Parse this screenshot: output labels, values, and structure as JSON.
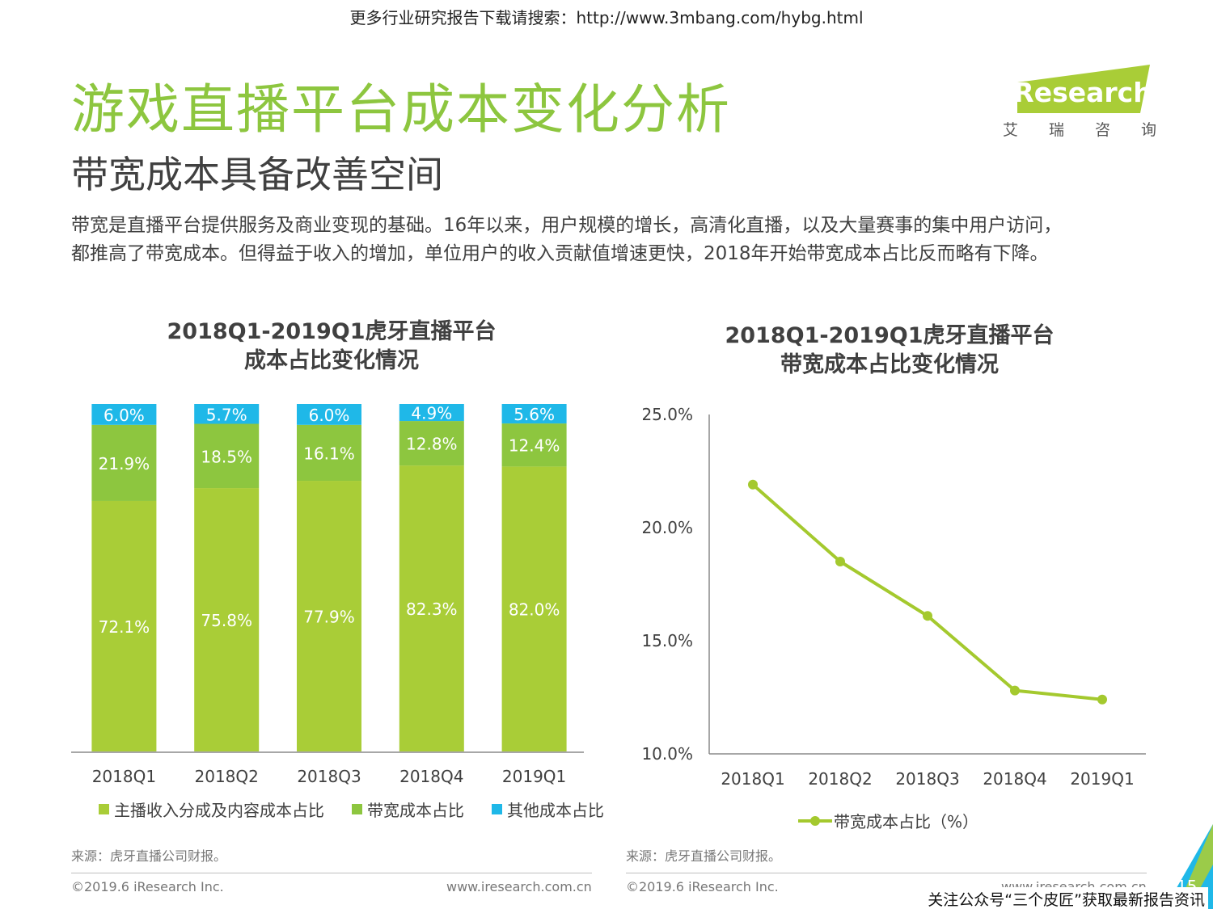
{
  "header": {
    "top_note": "更多行业研究报告下载请搜索：http://www.3mbang.com/hybg.html",
    "title": "游戏直播平台成本变化分析",
    "subtitle": "带宽成本具备改善空间",
    "description_lines": [
      "带宽是直播平台提供服务及商业变现的基础。16年以来，用户规模的增长，高清化直播，以及大量赛事的集中用户访问，",
      "都推高了带宽成本。但得益于收入的增加，单位用户的收入贡献值增速更快，2018年开始带宽成本占比反而略有下降。"
    ]
  },
  "logo": {
    "text": "iResearch",
    "cn": [
      "艾",
      "瑞",
      "咨",
      "询"
    ]
  },
  "colors": {
    "green_light": "#a9cd37",
    "green_mid": "#8dc63f",
    "cyan": "#1fb8e8",
    "line": "#a4c92e"
  },
  "chart_data": [
    {
      "type": "bar",
      "stacked": true,
      "title_lines": [
        "2018Q1-2019Q1虎牙直播平台",
        "成本占比变化情况"
      ],
      "categories": [
        "2018Q1",
        "2018Q2",
        "2018Q3",
        "2018Q4",
        "2019Q1"
      ],
      "series": [
        {
          "name": "主播收入分成及内容成本占比",
          "values": [
            72.1,
            75.8,
            77.9,
            82.3,
            82.0
          ],
          "labels": [
            "72.1%",
            "75.8%",
            "77.9%",
            "82.3%",
            "82.0%"
          ],
          "color": "#a9cd37"
        },
        {
          "name": "带宽成本占比",
          "values": [
            21.9,
            18.5,
            16.1,
            12.8,
            12.4
          ],
          "labels": [
            "21.9%",
            "18.5%",
            "16.1%",
            "12.8%",
            "12.4%"
          ],
          "color": "#8dc63f"
        },
        {
          "name": "其他成本占比",
          "values": [
            6.0,
            5.7,
            6.0,
            4.9,
            5.6
          ],
          "labels": [
            "6.0%",
            "5.7%",
            "6.0%",
            "4.9%",
            "5.6%"
          ],
          "color": "#1fb8e8"
        }
      ],
      "ylim": [
        0,
        100
      ],
      "legend": "bottom"
    },
    {
      "type": "line",
      "title_lines": [
        "2018Q1-2019Q1虎牙直播平台",
        "带宽成本占比变化情况"
      ],
      "categories": [
        "2018Q1",
        "2018Q2",
        "2018Q3",
        "2018Q4",
        "2019Q1"
      ],
      "series": [
        {
          "name": "带宽成本占比（%）",
          "values": [
            21.9,
            18.5,
            16.1,
            12.8,
            12.4
          ],
          "color": "#a4c92e"
        }
      ],
      "ylim": [
        10,
        25
      ],
      "yticks": [
        10,
        15,
        20,
        25
      ],
      "ytick_labels": [
        "10.0%",
        "15.0%",
        "20.0%",
        "25.0%"
      ],
      "legend": "bottom"
    }
  ],
  "footer": {
    "source": "来源：虎牙直播公司财报。",
    "copyright": "©2019.6 iResearch Inc.",
    "website": "www.iresearch.com.cn",
    "page": "15",
    "bottom_note": "关注公众号“三个皮匠”获取最新报告资讯"
  }
}
